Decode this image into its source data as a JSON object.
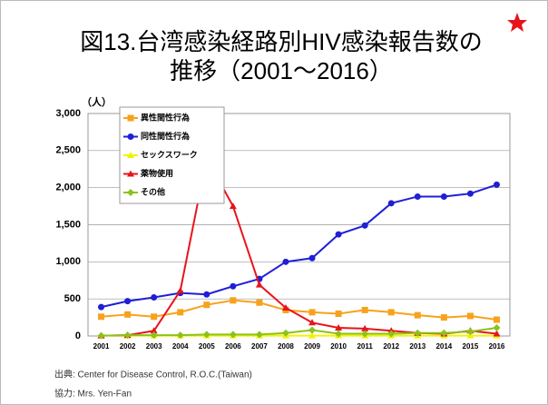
{
  "chart_data": {
    "type": "line",
    "title": [
      "図13.台湾感染経路別HIV感染報告数の",
      "推移（2001～2016）"
    ],
    "y_unit": "（人）",
    "categories": [
      "2001",
      "2002",
      "2003",
      "2004",
      "2005",
      "2006",
      "2007",
      "2008",
      "2009",
      "2010",
      "2011",
      "2012",
      "2013",
      "2014",
      "2015",
      "2016"
    ],
    "series": [
      {
        "name": "異性間性行為",
        "color": "#f7a21b",
        "marker": "square",
        "values": [
          260,
          290,
          260,
          320,
          420,
          480,
          450,
          350,
          320,
          300,
          350,
          320,
          280,
          250,
          270,
          220
        ]
      },
      {
        "name": "同性間性行為",
        "color": "#1f1fd6",
        "marker": "circle",
        "values": [
          390,
          470,
          520,
          580,
          560,
          670,
          770,
          1000,
          1050,
          1370,
          1490,
          1790,
          1880,
          1880,
          1920,
          2040
        ]
      },
      {
        "name": "セックスワーク",
        "color": "#f2f200",
        "marker": "triangle",
        "values": [
          5,
          5,
          5,
          5,
          5,
          5,
          5,
          5,
          5,
          5,
          5,
          5,
          5,
          5,
          5,
          5
        ]
      },
      {
        "name": "薬物使用",
        "color": "#e8141b",
        "marker": "triangle",
        "values": [
          5,
          10,
          70,
          610,
          2400,
          1750,
          690,
          380,
          180,
          110,
          100,
          70,
          40,
          30,
          70,
          30
        ]
      },
      {
        "name": "その他",
        "color": "#8cc21b",
        "marker": "diamond",
        "values": [
          5,
          10,
          10,
          10,
          20,
          20,
          20,
          40,
          80,
          30,
          30,
          30,
          40,
          40,
          60,
          110
        ]
      }
    ],
    "ylim": [
      0,
      3000
    ],
    "yticks": [
      0,
      500,
      {
        "value": 1000,
        "label": "1,000"
      },
      {
        "value": 1500,
        "label": "1,500"
      },
      {
        "value": 2000,
        "label": "2,000"
      },
      {
        "value": 2500,
        "label": "2,500"
      },
      {
        "value": 3000,
        "label": "3,000"
      }
    ],
    "grid": true,
    "legend": "upper left",
    "source": "出典: Center for Disease Control, R.O.C.(Taiwan)",
    "credit": "協力: Mrs. Yen-Fan"
  }
}
